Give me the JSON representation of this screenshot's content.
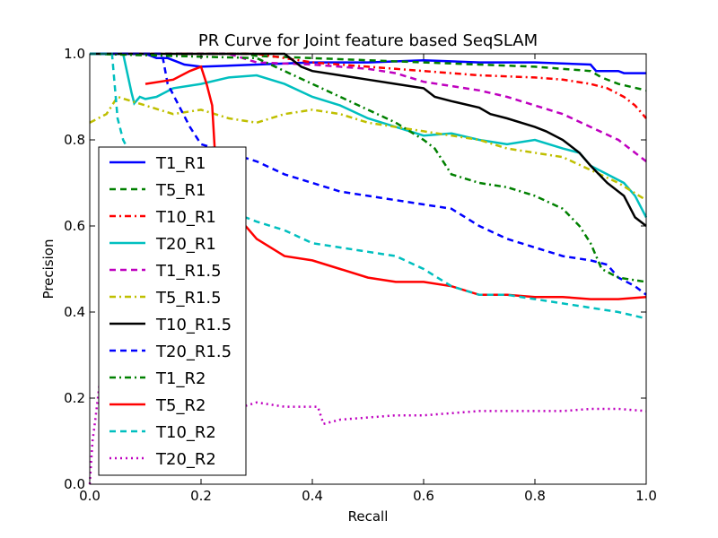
{
  "chart_data": {
    "type": "line",
    "title": "PR Curve for Joint feature based SeqSLAM",
    "xlabel": "Recall",
    "ylabel": "Precision",
    "xlim": [
      0,
      1
    ],
    "ylim": [
      0,
      1
    ],
    "xticks": [
      "0.0",
      "0.2",
      "0.4",
      "0.6",
      "0.8",
      "1.0"
    ],
    "yticks": [
      "0.0",
      "0.2",
      "0.4",
      "0.6",
      "0.8",
      "1.0"
    ],
    "grid": false,
    "legend_position": "center-left",
    "series": [
      {
        "name": "T1_R1",
        "color": "#0000ff",
        "style": "solid",
        "x": [
          0.0,
          0.1,
          0.12,
          0.14,
          0.16,
          0.17,
          0.2,
          0.3,
          0.4,
          0.5,
          0.6,
          0.7,
          0.8,
          0.9,
          0.91,
          0.95,
          0.96,
          1.0
        ],
        "y": [
          1.0,
          1.0,
          0.99,
          0.99,
          0.98,
          0.975,
          0.97,
          0.975,
          0.98,
          0.98,
          0.985,
          0.98,
          0.98,
          0.975,
          0.96,
          0.96,
          0.955,
          0.955
        ]
      },
      {
        "name": "T5_R1",
        "color": "#008000",
        "style": "dashed",
        "x": [
          0.0,
          0.28,
          0.3,
          0.4,
          0.5,
          0.6,
          0.7,
          0.8,
          0.85,
          0.9,
          0.92,
          0.95,
          1.0
        ],
        "y": [
          1.0,
          1.0,
          0.995,
          0.99,
          0.985,
          0.98,
          0.975,
          0.97,
          0.965,
          0.96,
          0.945,
          0.93,
          0.915
        ]
      },
      {
        "name": "T10_R1",
        "color": "#ff0000",
        "style": "dashdot",
        "x": [
          0.0,
          0.3,
          0.35,
          0.4,
          0.45,
          0.5,
          0.55,
          0.6,
          0.65,
          0.7,
          0.8,
          0.85,
          0.9,
          0.93,
          0.96,
          0.98,
          1.0
        ],
        "y": [
          1.0,
          1.0,
          0.99,
          0.98,
          0.975,
          0.97,
          0.965,
          0.96,
          0.955,
          0.95,
          0.945,
          0.94,
          0.93,
          0.92,
          0.9,
          0.88,
          0.85
        ]
      },
      {
        "name": "T20_R1",
        "color": "#00bfbf",
        "style": "solid",
        "x": [
          0.0,
          0.06,
          0.075,
          0.08,
          0.09,
          0.1,
          0.12,
          0.15,
          0.2,
          0.25,
          0.3,
          0.35,
          0.4,
          0.45,
          0.5,
          0.55,
          0.6,
          0.65,
          0.7,
          0.75,
          0.8,
          0.85,
          0.88,
          0.9,
          0.93,
          0.96,
          0.98,
          1.0
        ],
        "y": [
          1.0,
          1.0,
          0.91,
          0.885,
          0.9,
          0.895,
          0.9,
          0.92,
          0.93,
          0.945,
          0.95,
          0.93,
          0.9,
          0.88,
          0.85,
          0.83,
          0.81,
          0.815,
          0.8,
          0.79,
          0.8,
          0.78,
          0.77,
          0.74,
          0.72,
          0.7,
          0.67,
          0.62
        ]
      },
      {
        "name": "T1_R1.5",
        "color": "#bf00bf",
        "style": "dashed",
        "x": [
          0.0,
          0.25,
          0.3,
          0.4,
          0.45,
          0.5,
          0.55,
          0.6,
          0.65,
          0.7,
          0.75,
          0.8,
          0.85,
          0.9,
          0.95,
          0.98,
          1.0
        ],
        "y": [
          1.0,
          1.0,
          0.98,
          0.975,
          0.97,
          0.965,
          0.955,
          0.935,
          0.925,
          0.915,
          0.9,
          0.88,
          0.86,
          0.83,
          0.8,
          0.77,
          0.75
        ]
      },
      {
        "name": "T5_R1.5",
        "color": "#bfbf00",
        "style": "dashdot",
        "x": [
          0.0,
          0.03,
          0.05,
          0.1,
          0.15,
          0.2,
          0.25,
          0.3,
          0.35,
          0.4,
          0.45,
          0.5,
          0.55,
          0.6,
          0.65,
          0.7,
          0.75,
          0.8,
          0.85,
          0.9,
          0.95,
          1.0
        ],
        "y": [
          0.84,
          0.86,
          0.9,
          0.88,
          0.86,
          0.87,
          0.85,
          0.84,
          0.86,
          0.87,
          0.86,
          0.84,
          0.83,
          0.82,
          0.81,
          0.8,
          0.78,
          0.77,
          0.76,
          0.73,
          0.7,
          0.66
        ]
      },
      {
        "name": "T10_R1.5",
        "color": "#000000",
        "style": "solid",
        "x": [
          0.0,
          0.35,
          0.38,
          0.4,
          0.45,
          0.5,
          0.55,
          0.6,
          0.62,
          0.65,
          0.7,
          0.72,
          0.75,
          0.8,
          0.82,
          0.85,
          0.88,
          0.9,
          0.93,
          0.96,
          0.98,
          1.0
        ],
        "y": [
          1.0,
          1.0,
          0.97,
          0.96,
          0.95,
          0.94,
          0.93,
          0.92,
          0.9,
          0.89,
          0.875,
          0.86,
          0.85,
          0.83,
          0.82,
          0.8,
          0.77,
          0.74,
          0.7,
          0.67,
          0.62,
          0.6
        ]
      },
      {
        "name": "T20_R1.5",
        "color": "#0000ff",
        "style": "dashed",
        "x": [
          0.0,
          0.13,
          0.14,
          0.16,
          0.18,
          0.2,
          0.25,
          0.3,
          0.35,
          0.4,
          0.45,
          0.5,
          0.55,
          0.6,
          0.65,
          0.7,
          0.75,
          0.8,
          0.85,
          0.9,
          0.93,
          0.95,
          0.98,
          1.0
        ],
        "y": [
          1.0,
          1.0,
          0.93,
          0.88,
          0.83,
          0.79,
          0.77,
          0.75,
          0.72,
          0.7,
          0.68,
          0.67,
          0.66,
          0.65,
          0.64,
          0.6,
          0.57,
          0.55,
          0.53,
          0.52,
          0.51,
          0.48,
          0.46,
          0.44
        ]
      },
      {
        "name": "T1_R2",
        "color": "#008000",
        "style": "dashdot",
        "x": [
          0.0,
          0.3,
          0.35,
          0.4,
          0.45,
          0.5,
          0.55,
          0.6,
          0.62,
          0.65,
          0.7,
          0.75,
          0.8,
          0.85,
          0.88,
          0.9,
          0.92,
          0.95,
          1.0
        ],
        "y": [
          1.0,
          0.99,
          0.96,
          0.93,
          0.9,
          0.87,
          0.84,
          0.8,
          0.78,
          0.72,
          0.7,
          0.69,
          0.67,
          0.64,
          0.6,
          0.56,
          0.5,
          0.48,
          0.47
        ]
      },
      {
        "name": "T5_R2",
        "color": "#ff0000",
        "style": "solid",
        "x": [
          0.1,
          0.15,
          0.18,
          0.2,
          0.21,
          0.22,
          0.23,
          0.25,
          0.28,
          0.3,
          0.35,
          0.4,
          0.45,
          0.5,
          0.55,
          0.6,
          0.65,
          0.7,
          0.75,
          0.8,
          0.85,
          0.9,
          0.95,
          1.0
        ],
        "y": [
          0.93,
          0.94,
          0.96,
          0.97,
          0.93,
          0.88,
          0.66,
          0.63,
          0.6,
          0.57,
          0.53,
          0.52,
          0.5,
          0.48,
          0.47,
          0.47,
          0.46,
          0.44,
          0.44,
          0.435,
          0.435,
          0.43,
          0.43,
          0.435
        ]
      },
      {
        "name": "T10_R2",
        "color": "#00bfbf",
        "style": "dashed",
        "x": [
          0.0,
          0.04,
          0.05,
          0.06,
          0.08,
          0.1,
          0.15,
          0.2,
          0.25,
          0.28,
          0.3,
          0.35,
          0.4,
          0.45,
          0.5,
          0.55,
          0.6,
          0.65,
          0.7,
          0.75,
          0.8,
          0.85,
          0.9,
          0.95,
          1.0
        ],
        "y": [
          1.0,
          1.0,
          0.85,
          0.8,
          0.75,
          0.72,
          0.68,
          0.65,
          0.63,
          0.62,
          0.61,
          0.59,
          0.56,
          0.55,
          0.54,
          0.53,
          0.5,
          0.46,
          0.44,
          0.44,
          0.43,
          0.42,
          0.41,
          0.4,
          0.385
        ]
      },
      {
        "name": "T20_R2",
        "color": "#bf00bf",
        "style": "dotted",
        "x": [
          0.0,
          0.005,
          0.01,
          0.02,
          0.05,
          0.1,
          0.15,
          0.2,
          0.25,
          0.3,
          0.35,
          0.41,
          0.42,
          0.45,
          0.5,
          0.55,
          0.6,
          0.65,
          0.7,
          0.75,
          0.8,
          0.85,
          0.9,
          0.95,
          1.0
        ],
        "y": [
          0.0,
          0.1,
          0.15,
          0.26,
          0.17,
          0.15,
          0.16,
          0.17,
          0.17,
          0.19,
          0.18,
          0.18,
          0.14,
          0.15,
          0.155,
          0.16,
          0.16,
          0.165,
          0.17,
          0.17,
          0.17,
          0.17,
          0.175,
          0.175,
          0.17
        ]
      }
    ]
  }
}
